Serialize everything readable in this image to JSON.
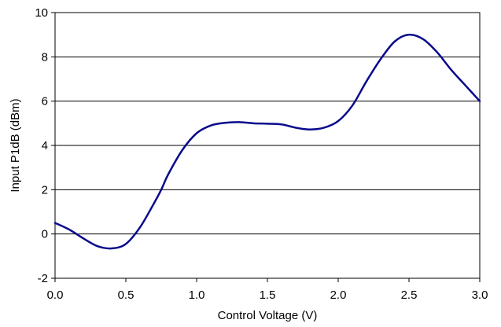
{
  "chart_data": {
    "type": "line",
    "title": "",
    "xlabel": "Control Voltage (V)",
    "ylabel": "Input P1dB (dBm)",
    "xlim": [
      0.0,
      3.0
    ],
    "ylim": [
      -2,
      10
    ],
    "x_ticks": [
      "0.0",
      "0.5",
      "1.0",
      "1.5",
      "2.0",
      "2.5",
      "3.0"
    ],
    "y_ticks": [
      "-2",
      "0",
      "2",
      "4",
      "6",
      "8",
      "10"
    ],
    "grid": "horizontal",
    "legend": "none",
    "line_color": "#0a0a8c",
    "series": [
      {
        "x": [
          0.0,
          0.1,
          0.2,
          0.3,
          0.4,
          0.5,
          0.6,
          0.7,
          0.75,
          0.8,
          0.9,
          1.0,
          1.1,
          1.2,
          1.3,
          1.4,
          1.5,
          1.6,
          1.7,
          1.8,
          1.9,
          2.0,
          2.1,
          2.2,
          2.3,
          2.4,
          2.5,
          2.6,
          2.7,
          2.8,
          2.9,
          3.0
        ],
        "y": [
          0.5,
          0.2,
          -0.2,
          -0.55,
          -0.65,
          -0.45,
          0.3,
          1.4,
          2.0,
          2.7,
          3.8,
          4.55,
          4.9,
          5.02,
          5.05,
          5.0,
          4.98,
          4.95,
          4.8,
          4.72,
          4.8,
          5.1,
          5.8,
          6.9,
          7.9,
          8.7,
          9.0,
          8.8,
          8.2,
          7.4,
          6.7,
          6.0
        ]
      }
    ]
  }
}
